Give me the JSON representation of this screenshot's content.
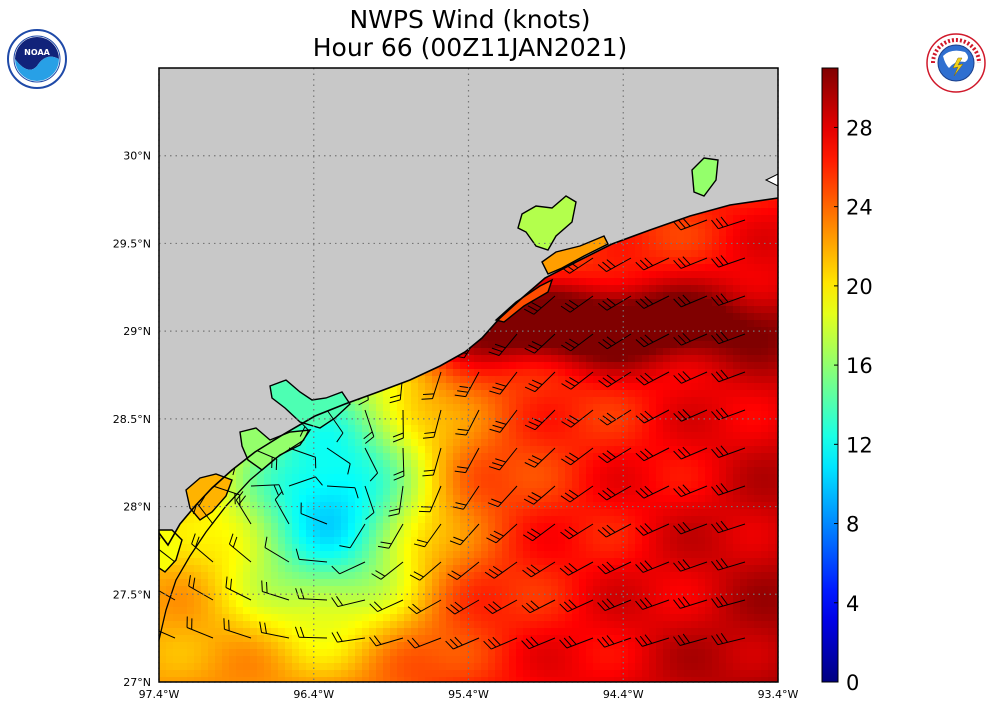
{
  "title": {
    "line1": "NWPS Wind (knots)",
    "line2": "Hour 66 (00Z11JAN2021)"
  },
  "logos": {
    "left": {
      "icon": "noaa-logo-icon",
      "text": "NOAA",
      "color": "#1f4aa8"
    },
    "right": {
      "icon": "nws-logo-icon",
      "text": "NATIONAL WEATHER SERVICE",
      "color": "#d0182a"
    }
  },
  "map": {
    "land_color": "#c8c8c8",
    "grid": true,
    "lat_ticks": [
      "30°N",
      "29.5°N",
      "29°N",
      "28.5°N",
      "28°N",
      "27.5°N",
      "27°N"
    ],
    "lon_ticks": [
      "97.4°W",
      "96.4°W",
      "95.4°W",
      "94.4°W",
      "93.4°W"
    ],
    "lat_range": [
      27.0,
      30.5
    ],
    "lon_range": [
      -97.4,
      -93.4
    ]
  },
  "colorbar": {
    "min": 0,
    "max": 31,
    "tick_labels": [
      "0",
      "4",
      "8",
      "12",
      "16",
      "20",
      "24",
      "28"
    ]
  }
}
